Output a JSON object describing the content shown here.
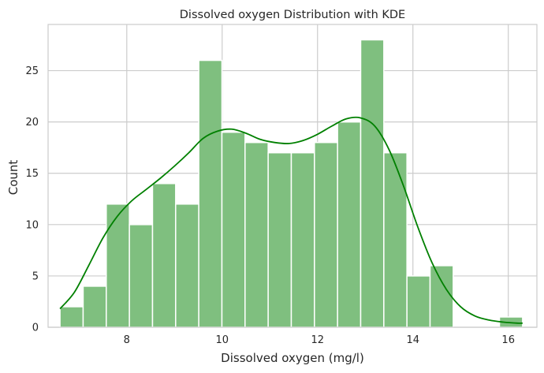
{
  "chart_data": {
    "type": "bar",
    "title": "Dissolved oxygen Distribution with KDE",
    "xlabel": "Dissolved oxygen (mg/l)",
    "ylabel": "Count",
    "xlim": [
      6.35,
      16.6
    ],
    "ylim": [
      0,
      29.5
    ],
    "xticks": [
      8,
      10,
      12,
      14,
      16
    ],
    "yticks": [
      0,
      5,
      10,
      15,
      20,
      25
    ],
    "grid": true,
    "bin_edges": [
      6.6,
      7.085,
      7.57,
      8.055,
      8.54,
      9.025,
      9.51,
      9.995,
      10.48,
      10.965,
      11.45,
      11.935,
      12.42,
      12.905,
      13.39,
      13.875,
      14.36,
      14.845,
      15.33,
      15.815,
      16.3
    ],
    "counts": [
      2,
      4,
      12,
      10,
      14,
      12,
      26,
      19,
      18,
      17,
      17,
      18,
      20,
      28,
      17,
      5,
      6,
      0,
      0,
      1
    ],
    "kde": {
      "x": [
        6.6,
        6.9,
        7.2,
        7.5,
        7.8,
        8.1,
        8.4,
        8.7,
        9.0,
        9.3,
        9.6,
        9.9,
        10.2,
        10.5,
        10.8,
        11.1,
        11.4,
        11.7,
        12.0,
        12.3,
        12.6,
        12.9,
        13.2,
        13.5,
        13.8,
        14.1,
        14.4,
        14.7,
        15.0,
        15.3,
        15.6,
        15.9,
        16.2,
        16.3
      ],
      "y": [
        1.8,
        3.4,
        6.0,
        8.7,
        10.8,
        12.3,
        13.4,
        14.5,
        15.7,
        17.0,
        18.4,
        19.1,
        19.3,
        18.9,
        18.3,
        18.0,
        17.9,
        18.2,
        18.8,
        19.6,
        20.3,
        20.4,
        19.6,
        17.3,
        13.8,
        9.8,
        6.3,
        3.7,
        2.0,
        1.1,
        0.7,
        0.5,
        0.4,
        0.4
      ]
    },
    "colors": {
      "bar_fill": "#7fbf7f",
      "bar_edge": "#ffffff",
      "kde_line": "#008000",
      "grid": "#cccccc",
      "axes_edge": "#cccccc"
    }
  }
}
